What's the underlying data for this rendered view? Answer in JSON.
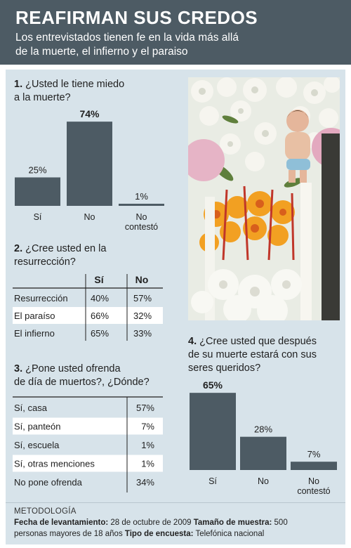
{
  "header": {
    "title": "REAFIRMAN SUS CREDOS",
    "subtitle_line1": "Los entrevistados tienen fe en la vida más allá",
    "subtitle_line2": "de la muerte, el infierno y el paraiso"
  },
  "q1": {
    "number": "1.",
    "line1": "¿Usted le tiene miedo",
    "line2": "a la muerte?"
  },
  "q2": {
    "number": "2.",
    "line1": "¿Cree usted en la",
    "line2": "resurrección?",
    "col_si": "Sí",
    "col_no": "No",
    "rows": [
      {
        "label": "Resurrección",
        "si": "40%",
        "no": "57%"
      },
      {
        "label": "El paraíso",
        "si": "66%",
        "no": "32%"
      },
      {
        "label": "El infierno",
        "si": "65%",
        "no": "33%"
      }
    ]
  },
  "q3": {
    "number": "3.",
    "line1": "¿Pone usted ofrenda",
    "line2": "de día de muertos?, ¿Dónde?",
    "rows": [
      {
        "label": "Sí, casa",
        "value": "57%"
      },
      {
        "label": "Sí, panteón",
        "value": "7%"
      },
      {
        "label": "Sí, escuela",
        "value": "1%"
      },
      {
        "label": "Sí, otras menciones",
        "value": "1%"
      },
      {
        "label": "No pone ofrenda",
        "value": "34%"
      }
    ]
  },
  "q4": {
    "number": "4.",
    "line1": "¿Cree usted que después",
    "line2": "de su muerte estará con sus",
    "line3": "seres queridos?"
  },
  "methodology": {
    "title": "METODOLOGÍA",
    "fecha_label": "Fecha de levantamiento:",
    "fecha_value": " 28 de octubre de 2009 ",
    "tamano_label": "Tamaño de muestra:",
    "tamano_value": " 500",
    "line2_value": "personas mayores de 18 años ",
    "tipo_label": "Tipo de encuesta:",
    "tipo_value": " Telefónica nacional"
  },
  "colors": {
    "bar": "#4d5b64",
    "panel": "#d7e3ea",
    "header": "#4d5b64"
  },
  "photo": {
    "description_icon": "altar-photo"
  },
  "chart_data": [
    {
      "type": "bar",
      "categories": [
        "Sí",
        "No",
        "No\ncontestó"
      ],
      "values": [
        25,
        74,
        1
      ],
      "value_labels": [
        "25%",
        "74%",
        "1%"
      ],
      "title": "¿Usted le tiene miedo a la muerte?",
      "xlabel": "",
      "ylabel": "",
      "ylim": [
        0,
        100
      ],
      "grid": false
    },
    {
      "type": "table",
      "columns": [
        "",
        "Sí",
        "No"
      ],
      "rows": [
        [
          "Resurrección",
          40,
          57
        ],
        [
          "El paraíso",
          66,
          32
        ],
        [
          "El infierno",
          65,
          33
        ]
      ],
      "title": "¿Cree usted en la resurrección?"
    },
    {
      "type": "table",
      "columns": [
        "",
        "%"
      ],
      "rows": [
        [
          "Sí, casa",
          57
        ],
        [
          "Sí, panteón",
          7
        ],
        [
          "Sí, escuela",
          1
        ],
        [
          "Sí, otras menciones",
          1
        ],
        [
          "No pone ofrenda",
          34
        ]
      ],
      "title": "¿Pone usted ofrenda de día de muertos?, ¿Dónde?"
    },
    {
      "type": "bar",
      "categories": [
        "Sí",
        "No",
        "No\ncontestó"
      ],
      "values": [
        65,
        28,
        7
      ],
      "value_labels": [
        "65%",
        "28%",
        "7%"
      ],
      "title": "¿Cree usted que después de su muerte estará con sus seres queridos?",
      "xlabel": "",
      "ylabel": "",
      "ylim": [
        0,
        100
      ],
      "grid": false
    }
  ]
}
